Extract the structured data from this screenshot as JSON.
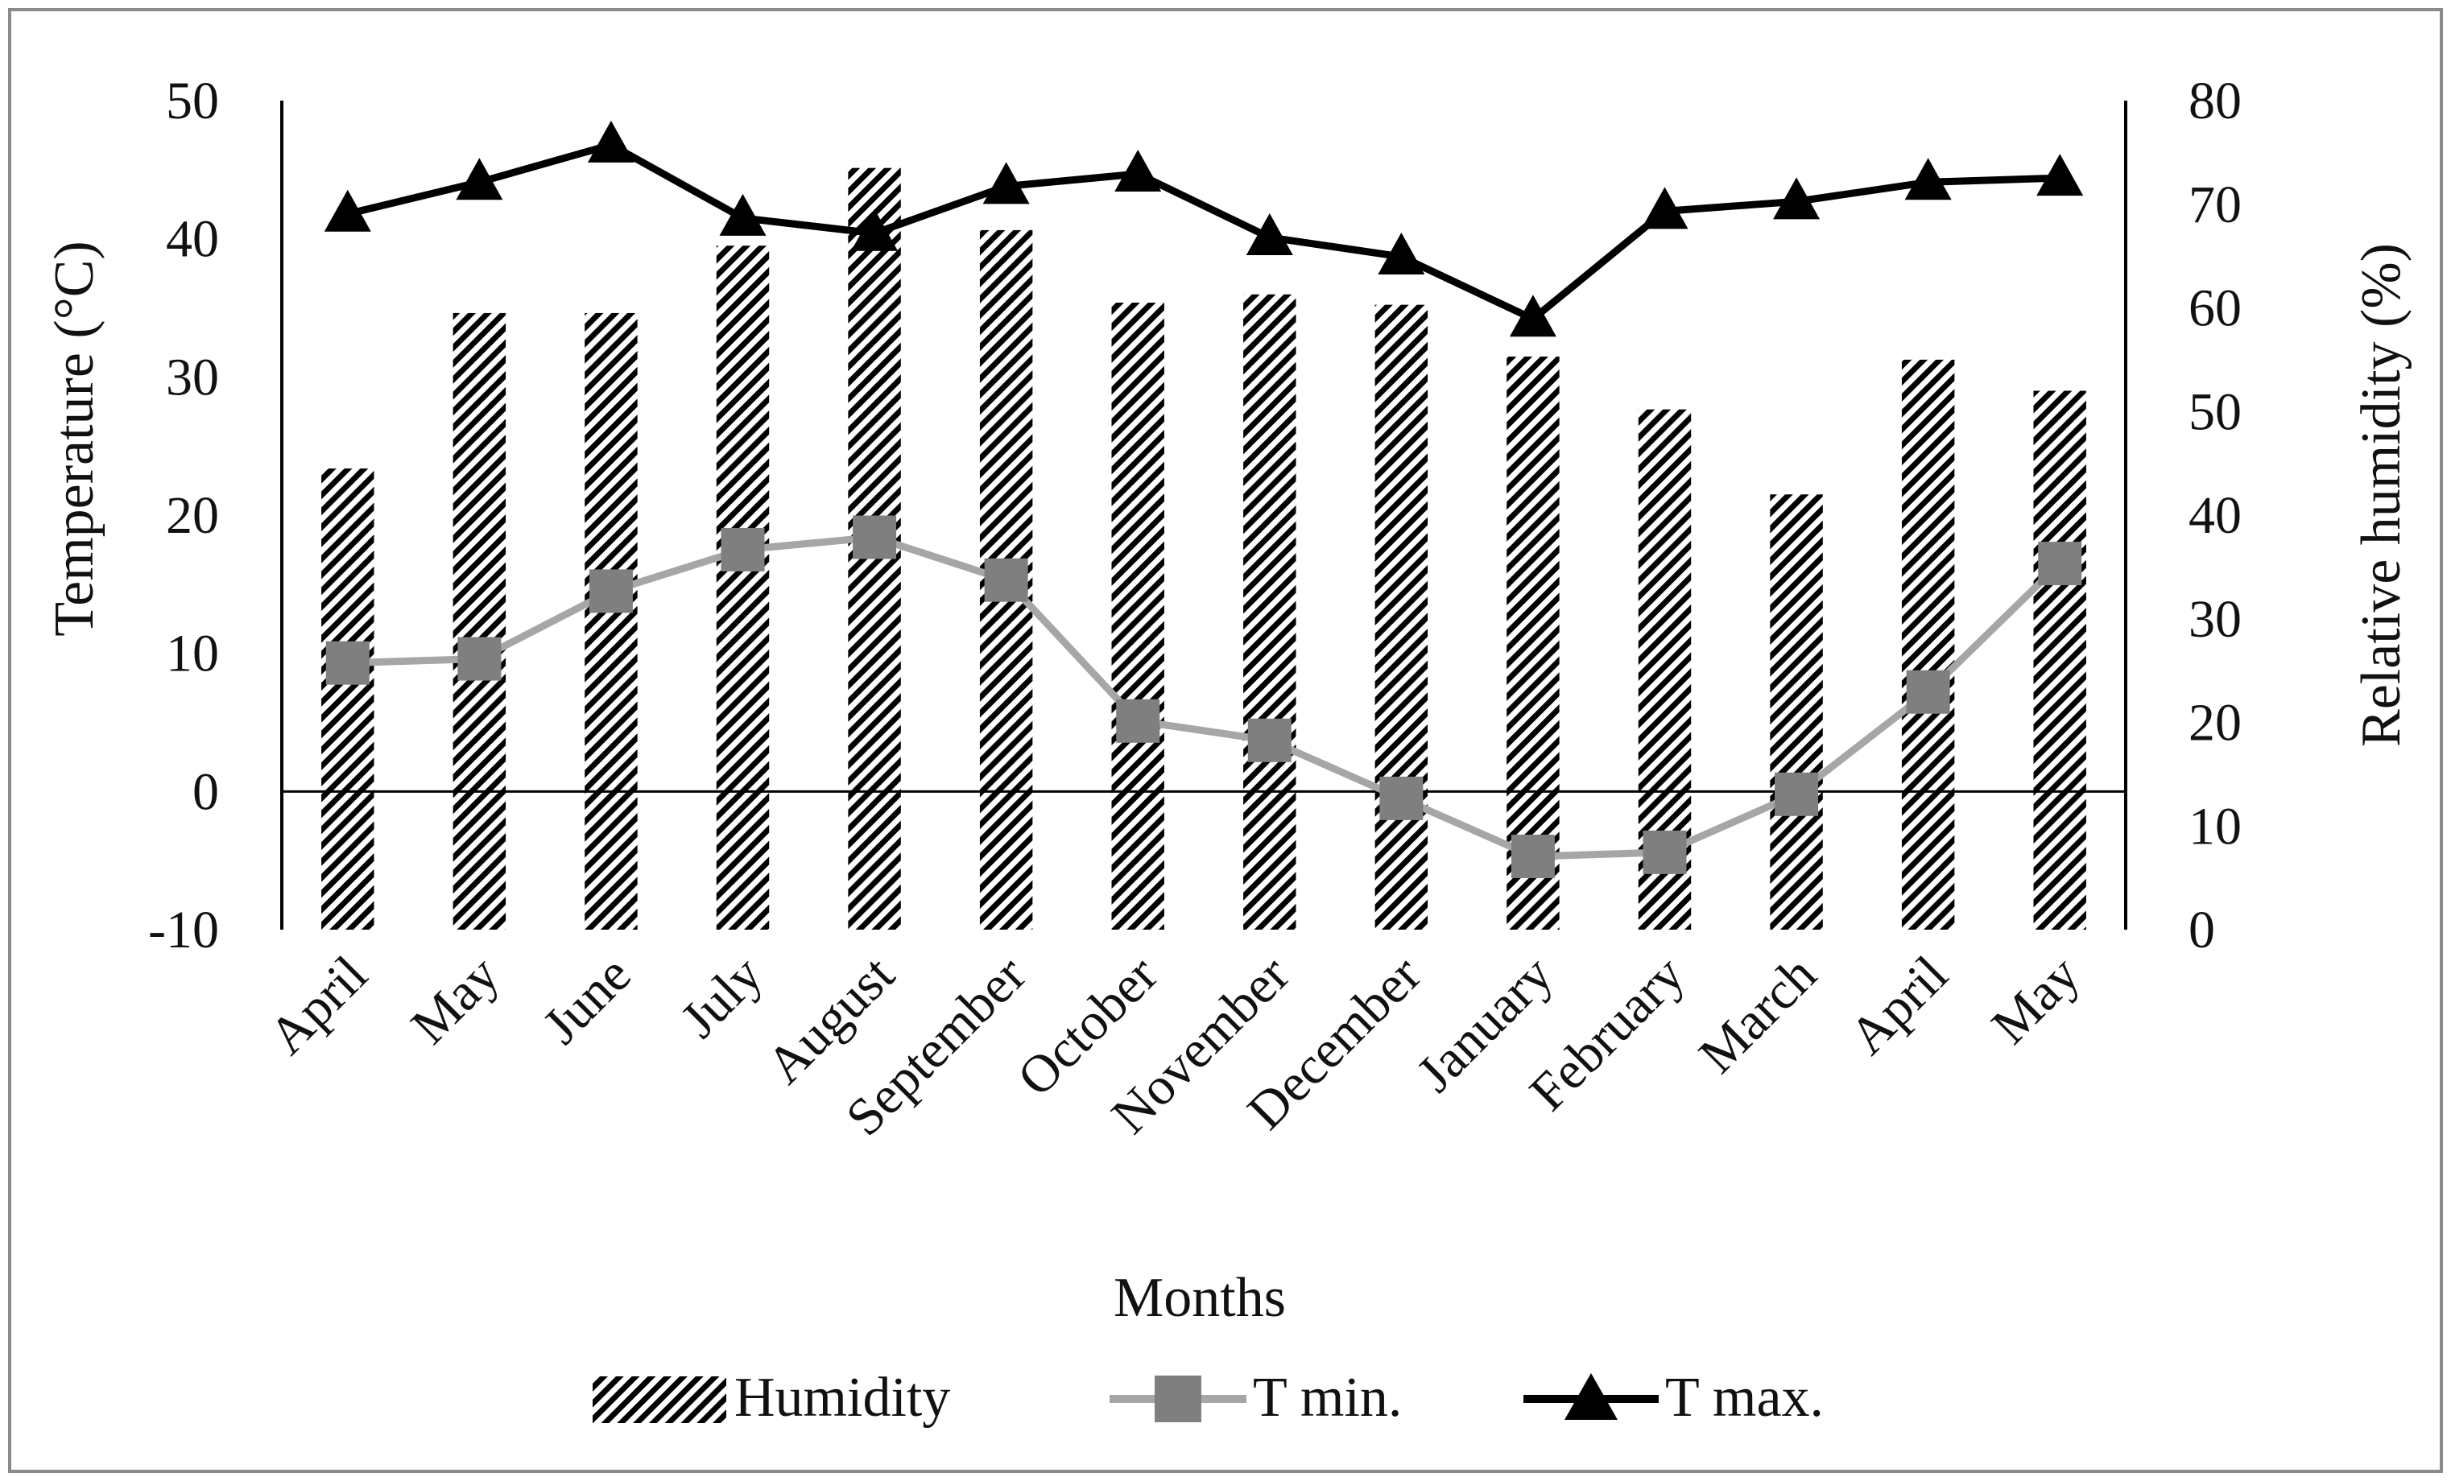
{
  "chart_data": {
    "type": "bar+line",
    "title": "",
    "xlabel": "Months",
    "ylabel_left": "Temperature (°C)",
    "ylabel_right": "Relative humidity (%)",
    "ylim_left": [
      -10,
      50
    ],
    "ylim_right": [
      0,
      80
    ],
    "yticks_left": [
      "50",
      "40",
      "30",
      "20",
      "10",
      "0",
      "-10"
    ],
    "yticks_right": [
      "80",
      "70",
      "60",
      "50",
      "40",
      "30",
      "20",
      "10",
      "0"
    ],
    "categories": [
      "April",
      "May",
      "June",
      "July",
      "August",
      "September",
      "October",
      "November",
      "December",
      "January",
      "February",
      "March",
      "April",
      "May"
    ],
    "series": [
      {
        "name": "Humidity",
        "kind": "bar",
        "axis": "right",
        "color": "#000000",
        "values": [
          44.5,
          59.5,
          59.5,
          66,
          73.5,
          67.5,
          60.5,
          61.3,
          60.3,
          55.3,
          50.2,
          42,
          55,
          52
        ]
      },
      {
        "name": "T min.",
        "kind": "line",
        "axis": "left",
        "color": "#a6a6a6",
        "marker_color": "#7f7f7f",
        "marker": "square",
        "values": [
          9.3,
          9.6,
          14.5,
          17.5,
          18.4,
          15.3,
          5.1,
          3.7,
          -0.5,
          -4.7,
          -4.4,
          -0.2,
          7.2,
          16.5
        ]
      },
      {
        "name": "T max.",
        "kind": "line",
        "axis": "left",
        "color": "#000000",
        "marker_color": "#000000",
        "marker": "triangle",
        "values": [
          41.8,
          44.1,
          46.8,
          41.5,
          40.4,
          43.8,
          44.7,
          40.1,
          38.7,
          34.2,
          42,
          42.7,
          44.1,
          44.4
        ]
      }
    ],
    "legend_position": "bottom",
    "zero_line": true
  }
}
